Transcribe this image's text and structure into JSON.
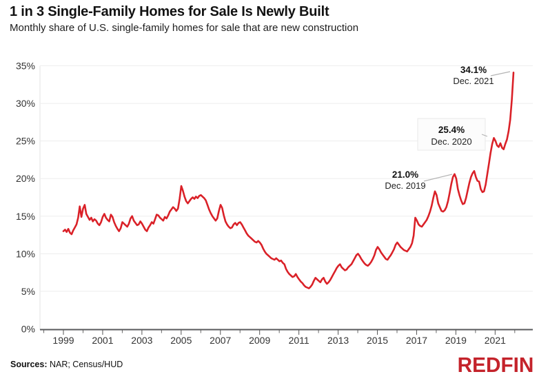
{
  "header": {
    "title": "1 in 3 Single-Family Homes for Sale Is Newly Built",
    "subtitle": "Monthly share of U.S. single-family homes for sale that are new construction"
  },
  "footer": {
    "sources_label": "Sources:",
    "sources_text": " NAR; Census/HUD",
    "logo_text": "REDFIN"
  },
  "chart_data": {
    "type": "line",
    "title": "1 in 3 Single-Family Homes for Sale Is Newly Built",
    "subtitle": "Monthly share of U.S. single-family homes for sale that are new construction",
    "x_start": "1999-01",
    "x_end": "2021-12",
    "x_frequency": "monthly",
    "ylim": [
      0,
      35
    ],
    "ytick_labels": [
      "0%",
      "5%",
      "10%",
      "15%",
      "20%",
      "25%",
      "30%",
      "35%"
    ],
    "xtick_labels": [
      "1999",
      "2001",
      "2003",
      "2005",
      "2007",
      "2009",
      "2011",
      "2013",
      "2015",
      "2017",
      "2019",
      "2021"
    ],
    "minor_xtick_years": [
      1998,
      2000,
      2002,
      2004,
      2006,
      2008,
      2010,
      2012,
      2014,
      2016,
      2018,
      2020,
      2022
    ],
    "grid": "horizontal",
    "line_color": "#da2128",
    "series": [
      {
        "name": "Share of single-family homes for sale that are new construction (%)",
        "values": [
          13.0,
          13.2,
          12.9,
          13.3,
          12.8,
          12.6,
          13.1,
          13.5,
          13.9,
          14.8,
          16.3,
          14.9,
          16.0,
          16.5,
          15.3,
          14.9,
          14.5,
          14.8,
          14.3,
          14.6,
          14.4,
          14.0,
          13.8,
          14.2,
          14.9,
          15.3,
          14.8,
          14.5,
          14.3,
          15.2,
          14.9,
          14.2,
          13.7,
          13.3,
          13.0,
          13.4,
          14.2,
          14.0,
          13.8,
          13.6,
          14.0,
          14.7,
          15.0,
          14.4,
          14.1,
          13.8,
          13.9,
          14.3,
          14.0,
          13.6,
          13.2,
          13.0,
          13.5,
          13.8,
          14.2,
          14.0,
          14.6,
          15.2,
          15.1,
          14.8,
          14.6,
          14.4,
          14.9,
          14.7,
          15.1,
          15.6,
          15.9,
          16.2,
          16.0,
          15.7,
          16.0,
          17.3,
          19.0,
          18.4,
          17.6,
          17.0,
          16.7,
          17.0,
          17.3,
          17.5,
          17.3,
          17.6,
          17.4,
          17.7,
          17.8,
          17.6,
          17.4,
          17.1,
          16.5,
          15.9,
          15.4,
          15.0,
          14.7,
          14.4,
          14.7,
          15.7,
          16.5,
          16.1,
          15.1,
          14.3,
          13.9,
          13.6,
          13.4,
          13.5,
          13.9,
          14.1,
          13.8,
          14.1,
          14.2,
          13.9,
          13.5,
          13.1,
          12.7,
          12.4,
          12.2,
          12.0,
          11.8,
          11.6,
          11.5,
          11.7,
          11.5,
          11.2,
          10.7,
          10.3,
          10.0,
          9.8,
          9.6,
          9.4,
          9.3,
          9.2,
          9.4,
          9.2,
          9.0,
          9.1,
          8.8,
          8.6,
          8.0,
          7.6,
          7.3,
          7.1,
          6.9,
          7.0,
          7.3,
          6.9,
          6.6,
          6.3,
          6.1,
          5.8,
          5.6,
          5.5,
          5.4,
          5.6,
          5.9,
          6.4,
          6.8,
          6.6,
          6.4,
          6.2,
          6.6,
          6.8,
          6.3,
          6.0,
          6.2,
          6.5,
          6.9,
          7.3,
          7.7,
          8.1,
          8.4,
          8.6,
          8.2,
          8.0,
          7.8,
          7.9,
          8.2,
          8.4,
          8.6,
          9.0,
          9.4,
          9.8,
          10.0,
          9.7,
          9.3,
          9.0,
          8.7,
          8.5,
          8.4,
          8.6,
          8.9,
          9.3,
          9.8,
          10.5,
          10.9,
          10.6,
          10.2,
          9.9,
          9.6,
          9.3,
          9.2,
          9.5,
          9.8,
          10.2,
          10.6,
          11.2,
          11.5,
          11.2,
          10.9,
          10.7,
          10.5,
          10.4,
          10.3,
          10.6,
          10.9,
          11.4,
          12.4,
          14.8,
          14.4,
          13.9,
          13.7,
          13.6,
          13.9,
          14.2,
          14.5,
          15.0,
          15.6,
          16.4,
          17.4,
          18.3,
          17.8,
          16.7,
          16.2,
          15.7,
          15.6,
          15.8,
          16.2,
          17.0,
          18.1,
          19.3,
          20.2,
          20.6,
          20.0,
          18.6,
          17.8,
          17.1,
          16.6,
          16.7,
          17.4,
          18.4,
          19.4,
          20.2,
          20.7,
          21.0,
          20.2,
          19.7,
          19.6,
          18.6,
          18.2,
          18.3,
          19.2,
          20.6,
          22.0,
          23.4,
          24.6,
          25.4,
          25.0,
          24.4,
          24.2,
          24.7,
          24.1,
          23.9,
          24.6,
          25.2,
          26.3,
          27.8,
          30.5,
          34.1
        ]
      }
    ],
    "annotations": [
      {
        "value": "34.1%",
        "date": "Dec. 2021"
      },
      {
        "value": "25.4%",
        "date": "Dec. 2020"
      },
      {
        "value": "21.0%",
        "date": "Dec. 2019"
      }
    ]
  }
}
